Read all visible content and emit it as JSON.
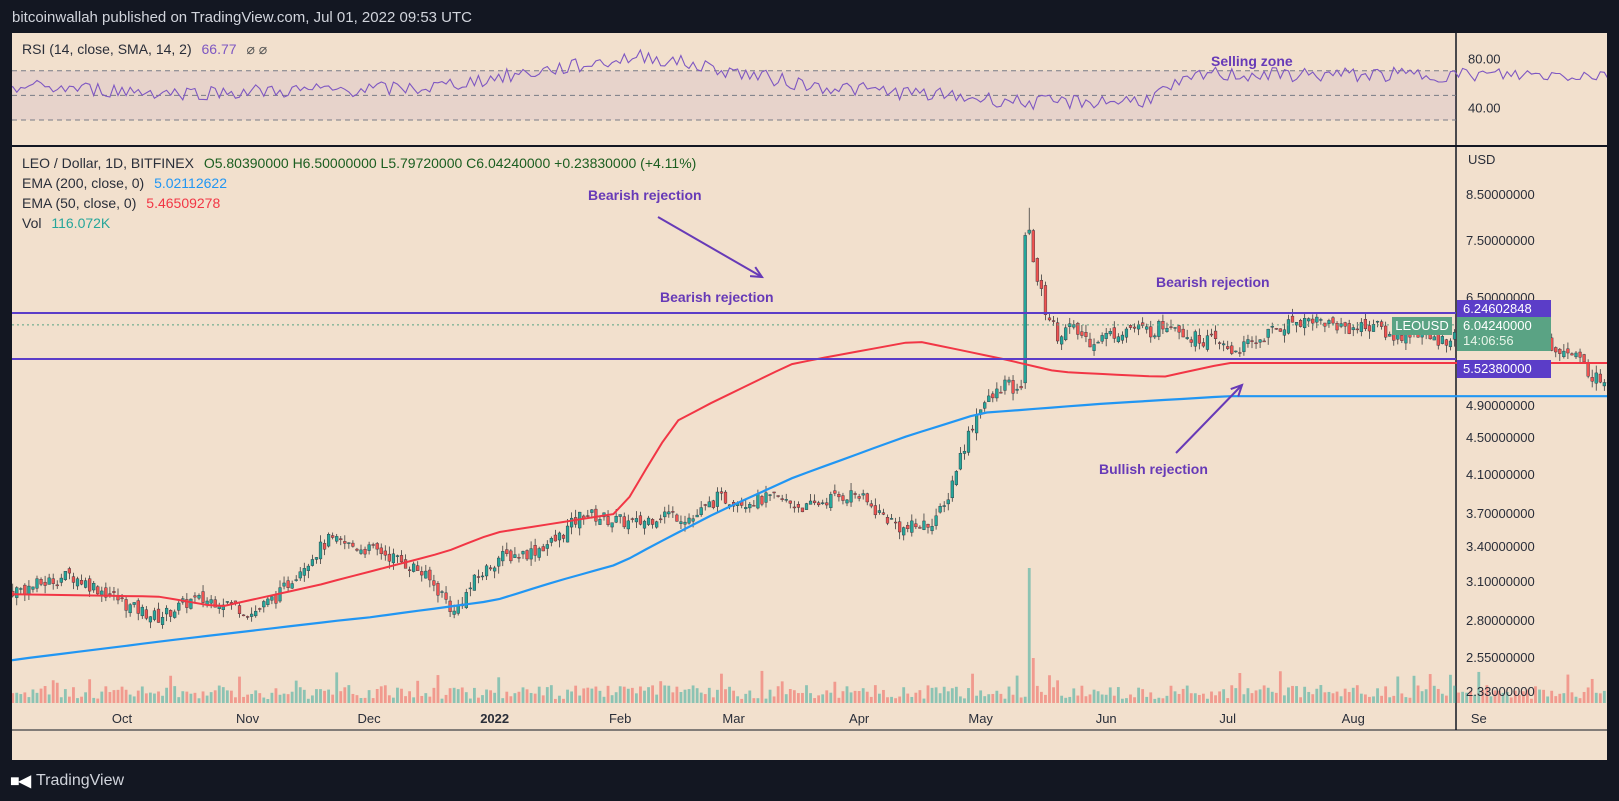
{
  "header": {
    "publisher_line": "bitcoinwallah published on TradingView.com, Jul 01, 2022 09:53 UTC"
  },
  "rsi": {
    "label": "RSI (14, close, SMA, 14, 2)",
    "value": "66.77",
    "extra": "⌀ ⌀",
    "ticks": [
      "80.00",
      "40.00"
    ]
  },
  "main_legend": {
    "symbol": "LEO / Dollar, 1D, BITFINEX",
    "ohlc": "O5.80390000  H6.50000000  L5.79720000  C6.04240000  +0.23830000 (+4.11%)",
    "ema200_label": "EMA (200, close, 0)",
    "ema200_value": "5.02112622",
    "ema50_label": "EMA (50, close, 0)",
    "ema50_value": "5.46509278",
    "vol_label": "Vol",
    "vol_value": "116.072K"
  },
  "price_scale": {
    "currency": "USD",
    "ticks": [
      "8.50000000",
      "7.50000000",
      "6.50000000",
      "4.90000000",
      "4.50000000",
      "4.10000000",
      "3.70000000",
      "3.40000000",
      "3.10000000",
      "2.80000000",
      "2.55000000",
      "2.33000000"
    ]
  },
  "price_tags": {
    "resistance": "6.24602848",
    "last_symbol": "LEOUSD",
    "last_price": "6.04240000",
    "countdown": "14:06:56",
    "support": "5.52380000"
  },
  "time_axis": {
    "labels": [
      "Oct",
      "Nov",
      "Dec",
      "2022",
      "Feb",
      "Mar",
      "Apr",
      "May",
      "Jun",
      "Jul",
      "Aug",
      "Se"
    ]
  },
  "annotations": {
    "selling_zone": "Selling zone",
    "bearish_rejection_1": "Bearish rejection",
    "bearish_rejection_2": "Bearish rejection",
    "bearish_rejection_3": "Bearish rejection",
    "bullish_rejection": "Bullish rejection"
  },
  "footer": {
    "brand": "TradingView"
  },
  "colors": {
    "background": "#f2e0cd",
    "up": "#26a69a",
    "down": "#ef5350",
    "ema200": "#2196f3",
    "ema50": "#f23645",
    "rsi": "#7e57c2",
    "levels": "#5b3dc8"
  },
  "chart_data": {
    "type": "candlestick",
    "symbol": "LEO / Dollar",
    "interval": "1D",
    "resistance": 6.24602848,
    "support": 5.5238,
    "last_close": 6.0424,
    "series": [
      {
        "name": "EMA (200, close, 0)",
        "x": [
          "2022-01-01",
          "2022-02-01",
          "2022-03-15",
          "2022-05-01",
          "2022-06-01",
          "2022-07-01"
        ],
        "values": [
          2.95,
          3.25,
          4.05,
          4.8,
          4.92,
          5.02
        ]
      },
      {
        "name": "EMA (50, close, 0)",
        "x": [
          "2022-01-01",
          "2022-02-01",
          "2022-02-15",
          "2022-03-15",
          "2022-04-15",
          "2022-05-20",
          "2022-06-15",
          "2022-07-01"
        ],
        "values": [
          3.52,
          3.7,
          4.7,
          5.45,
          5.8,
          5.35,
          5.28,
          5.47
        ]
      },
      {
        "name": "RSI (14, close, SMA, 14, 2)",
        "x": [
          "2021-09-01",
          "2021-10-15",
          "2021-12-15",
          "2022-02-07",
          "2022-03-20",
          "2022-05-15",
          "2022-06-10",
          "2022-06-26",
          "2022-07-01"
        ],
        "values": [
          58,
          52,
          56,
          82,
          58,
          44,
          46,
          68,
          66.77
        ]
      }
    ],
    "annotations": [
      "Bearish rejection",
      "Bearish rejection",
      "Bearish rejection",
      "Bullish rejection",
      "Selling zone"
    ]
  }
}
